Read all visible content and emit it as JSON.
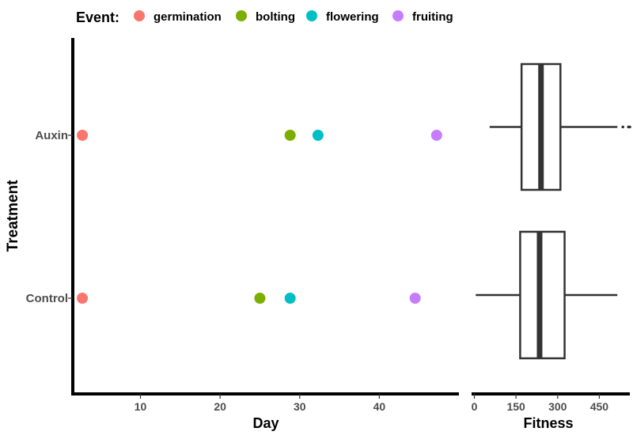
{
  "legend": {
    "title": "Event:",
    "items": [
      {
        "label": "germination",
        "color": "#F8766D"
      },
      {
        "label": "bolting",
        "color": "#7CAE00"
      },
      {
        "label": "flowering",
        "color": "#00BFC4"
      },
      {
        "label": "fruiting",
        "color": "#C77CFF"
      }
    ]
  },
  "chart_data": [
    {
      "type": "scatter",
      "xlabel": "Day",
      "ylabel": "Treatment",
      "xlim": [
        1.5,
        50
      ],
      "x_ticks": [
        10,
        20,
        30,
        40
      ],
      "categories": [
        "Control",
        "Auxin"
      ],
      "legend_position": "top",
      "grid": false,
      "series": [
        {
          "name": "germination",
          "color": "#F8766D",
          "points": [
            {
              "category": "Auxin",
              "x": 2.7
            },
            {
              "category": "Control",
              "x": 2.7
            }
          ]
        },
        {
          "name": "bolting",
          "color": "#7CAE00",
          "points": [
            {
              "category": "Auxin",
              "x": 28.8
            },
            {
              "category": "Control",
              "x": 25.0
            }
          ]
        },
        {
          "name": "flowering",
          "color": "#00BFC4",
          "points": [
            {
              "category": "Auxin",
              "x": 32.3
            },
            {
              "category": "Control",
              "x": 28.8
            }
          ]
        },
        {
          "name": "fruiting",
          "color": "#C77CFF",
          "points": [
            {
              "category": "Auxin",
              "x": 47.2
            },
            {
              "category": "Control",
              "x": 44.5
            }
          ]
        }
      ]
    },
    {
      "type": "box",
      "xlabel": "Fitness",
      "xlim": [
        -10,
        560
      ],
      "x_ticks": [
        0,
        150,
        300,
        450
      ],
      "categories": [
        "Control",
        "Auxin"
      ],
      "boxes": [
        {
          "category": "Auxin",
          "whisker_low": 55,
          "q1": 170,
          "median": 240,
          "q3": 310,
          "whisker_high": 515,
          "outliers": [
            535,
            555,
            560
          ]
        },
        {
          "category": "Control",
          "whisker_low": 5,
          "q1": 165,
          "median": 235,
          "q3": 325,
          "whisker_high": 515,
          "outliers": []
        }
      ]
    }
  ]
}
